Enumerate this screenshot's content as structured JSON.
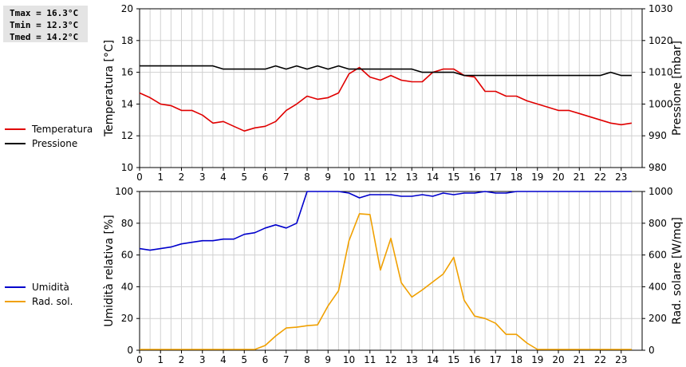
{
  "stats": {
    "tmax": "Tmax = 16.3°C",
    "tmin": "Tmin = 12.3°C",
    "tmed": "Tmed = 14.2°C"
  },
  "colors": {
    "temperature": "#e00000",
    "pressure": "#000000",
    "humidity": "#0000cc",
    "radiation": "#f0a000",
    "grid": "#d0d0d0"
  },
  "legend_top": [
    {
      "label": "Temperatura",
      "color": "#e00000"
    },
    {
      "label": "Pressione",
      "color": "#000000"
    }
  ],
  "legend_bottom": [
    {
      "label": "Umidità",
      "color": "#0000cc"
    },
    {
      "label": "Rad. sol.",
      "color": "#f0a000"
    }
  ],
  "chart_data": [
    {
      "type": "line",
      "ylabel": "Temperatura [°C]",
      "y2label": "Pressione [mbar]",
      "xlim": [
        0,
        24
      ],
      "ylim": [
        10,
        20
      ],
      "y2lim": [
        980,
        1030
      ],
      "x_ticks": [
        "0",
        "1",
        "2",
        "3",
        "4",
        "5",
        "6",
        "7",
        "8",
        "9",
        "10",
        "11",
        "12",
        "13",
        "14",
        "15",
        "16",
        "17",
        "18",
        "19",
        "20",
        "21",
        "22",
        "23"
      ],
      "y_ticks": [
        "10",
        "12",
        "14",
        "16",
        "18",
        "20"
      ],
      "y2_ticks": [
        "980",
        "990",
        "1000",
        "1010",
        "1020",
        "1030"
      ],
      "grid": true,
      "series": [
        {
          "name": "Temperatura",
          "axis": "left",
          "x": [
            0,
            0.5,
            1,
            1.5,
            2,
            2.5,
            3,
            3.5,
            4,
            4.5,
            5,
            5.5,
            6,
            6.5,
            7,
            7.5,
            8,
            8.5,
            9,
            9.5,
            10,
            10.5,
            11,
            11.5,
            12,
            12.5,
            13,
            13.5,
            14,
            14.5,
            15,
            15.5,
            16,
            16.5,
            17,
            17.5,
            18,
            18.5,
            19,
            19.5,
            20,
            20.5,
            21,
            21.5,
            22,
            22.5,
            23,
            23.5
          ],
          "y": [
            14.7,
            14.4,
            14.0,
            13.9,
            13.6,
            13.6,
            13.3,
            12.8,
            12.9,
            12.6,
            12.3,
            12.5,
            12.6,
            12.9,
            13.6,
            14.0,
            14.5,
            14.3,
            14.4,
            14.7,
            15.9,
            16.3,
            15.7,
            15.5,
            15.8,
            15.5,
            15.4,
            15.4,
            16.0,
            16.2,
            16.2,
            15.8,
            15.7,
            14.8,
            14.8,
            14.5,
            14.5,
            14.2,
            14.0,
            13.8,
            13.6,
            13.6,
            13.4,
            13.2,
            13.0,
            12.8,
            12.7,
            12.8
          ]
        },
        {
          "name": "Pressione",
          "axis": "right",
          "x": [
            0,
            0.5,
            1,
            1.5,
            2,
            2.5,
            3,
            3.5,
            4,
            4.5,
            5,
            5.5,
            6,
            6.5,
            7,
            7.5,
            8,
            8.5,
            9,
            9.5,
            10,
            10.5,
            11,
            11.5,
            12,
            12.5,
            13,
            13.5,
            14,
            14.5,
            15,
            15.5,
            16,
            16.5,
            17,
            17.5,
            18,
            18.5,
            19,
            19.5,
            20,
            20.5,
            21,
            21.5,
            22,
            22.5,
            23,
            23.5
          ],
          "y": [
            1012,
            1012,
            1012,
            1012,
            1012,
            1012,
            1012,
            1012,
            1011,
            1011,
            1011,
            1011,
            1011,
            1012,
            1011,
            1012,
            1011,
            1012,
            1011,
            1012,
            1011,
            1011,
            1011,
            1011,
            1011,
            1011,
            1011,
            1010,
            1010,
            1010,
            1010,
            1009,
            1009,
            1009,
            1009,
            1009,
            1009,
            1009,
            1009,
            1009,
            1009,
            1009,
            1009,
            1009,
            1009,
            1010,
            1009,
            1009
          ]
        }
      ]
    },
    {
      "type": "line",
      "ylabel": "Umidità relativa [%]",
      "y2label": "Rad. solare [W/mq]",
      "xlim": [
        0,
        24
      ],
      "ylim": [
        0,
        100
      ],
      "y2lim": [
        0,
        1000
      ],
      "x_ticks": [
        "0",
        "1",
        "2",
        "3",
        "4",
        "5",
        "6",
        "7",
        "8",
        "9",
        "10",
        "11",
        "12",
        "13",
        "14",
        "15",
        "16",
        "17",
        "18",
        "19",
        "20",
        "21",
        "22",
        "23"
      ],
      "y_ticks": [
        "0",
        "20",
        "40",
        "60",
        "80",
        "100"
      ],
      "y2_ticks": [
        "0",
        "200",
        "400",
        "600",
        "800",
        "1000"
      ],
      "grid": true,
      "series": [
        {
          "name": "Umidità",
          "axis": "left",
          "x": [
            0,
            0.5,
            1,
            1.5,
            2,
            2.5,
            3,
            3.5,
            4,
            4.5,
            5,
            5.5,
            6,
            6.5,
            7,
            7.5,
            8,
            8.5,
            9,
            9.5,
            10,
            10.5,
            11,
            11.5,
            12,
            12.5,
            13,
            13.5,
            14,
            14.5,
            15,
            15.5,
            16,
            16.5,
            17,
            17.5,
            18,
            18.5,
            19,
            19.5,
            20,
            20.5,
            21,
            21.5,
            22,
            22.5,
            23,
            23.5
          ],
          "y": [
            64,
            63,
            64,
            65,
            67,
            68,
            69,
            69,
            70,
            70,
            73,
            74,
            77,
            79,
            77,
            80,
            100,
            100,
            100,
            100,
            99,
            96,
            98,
            98,
            98,
            97,
            97,
            98,
            97,
            99,
            98,
            99,
            99,
            100,
            99,
            99,
            100,
            100,
            100,
            100,
            100,
            100,
            100,
            100,
            100,
            100,
            100,
            100
          ]
        },
        {
          "name": "Rad. sol.",
          "axis": "right",
          "x": [
            0,
            0.5,
            1,
            1.5,
            2,
            2.5,
            3,
            3.5,
            4,
            4.5,
            5,
            5.5,
            6,
            6.5,
            7,
            7.5,
            8,
            8.5,
            9,
            9.5,
            10,
            10.5,
            11,
            11.5,
            12,
            12.5,
            13,
            13.5,
            14,
            14.5,
            15,
            15.5,
            16,
            16.5,
            17,
            17.5,
            18,
            18.5,
            19,
            19.5,
            20,
            20.5,
            21,
            21.5,
            22,
            22.5,
            23,
            23.5
          ],
          "y": [
            5,
            5,
            5,
            5,
            5,
            5,
            5,
            5,
            5,
            5,
            5,
            5,
            30,
            90,
            140,
            145,
            155,
            160,
            280,
            375,
            690,
            860,
            855,
            505,
            705,
            425,
            335,
            380,
            430,
            480,
            585,
            315,
            215,
            200,
            170,
            100,
            100,
            45,
            5,
            5,
            5,
            5,
            5,
            5,
            5,
            5,
            5,
            5
          ]
        }
      ]
    }
  ]
}
